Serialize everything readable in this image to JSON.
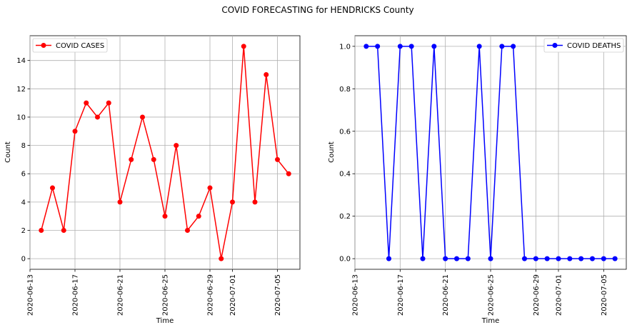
{
  "figure": {
    "suptitle": "COVID FORECASTING for HENDRICKS County"
  },
  "chart_data": [
    {
      "type": "line",
      "title": "",
      "xlabel": "Time",
      "ylabel": "Count",
      "grid": true,
      "legend": "top-left",
      "color": "#ff0000",
      "x": [
        "2020-06-14",
        "2020-06-15",
        "2020-06-16",
        "2020-06-17",
        "2020-06-18",
        "2020-06-19",
        "2020-06-20",
        "2020-06-21",
        "2020-06-22",
        "2020-06-23",
        "2020-06-24",
        "2020-06-25",
        "2020-06-26",
        "2020-06-27",
        "2020-06-28",
        "2020-06-29",
        "2020-06-30",
        "2020-07-01",
        "2020-07-02",
        "2020-07-03",
        "2020-07-04",
        "2020-07-05",
        "2020-07-06"
      ],
      "series": [
        {
          "name": "COVID CASES",
          "values": [
            2,
            5,
            2,
            9,
            11,
            10,
            11,
            4,
            7,
            10,
            7,
            3,
            8,
            2,
            3,
            5,
            0,
            4,
            15,
            4,
            13,
            7,
            6
          ]
        }
      ],
      "xlim": [
        "2020-06-13",
        "2020-07-07"
      ],
      "ylim": [
        -0.75,
        15.75
      ],
      "xticks": [
        "2020-06-13",
        "2020-06-17",
        "2020-06-21",
        "2020-06-25",
        "2020-06-29",
        "2020-07-01",
        "2020-07-05"
      ],
      "yticks": [
        0,
        2,
        4,
        6,
        8,
        10,
        12,
        14
      ],
      "ytick_labels": [
        "0",
        "2",
        "4",
        "6",
        "8",
        "10",
        "12",
        "14"
      ]
    },
    {
      "type": "line",
      "title": "",
      "xlabel": "Time",
      "ylabel": "Count",
      "grid": true,
      "legend": "top-right",
      "color": "#0000ff",
      "x": [
        "2020-06-14",
        "2020-06-15",
        "2020-06-16",
        "2020-06-17",
        "2020-06-18",
        "2020-06-19",
        "2020-06-20",
        "2020-06-21",
        "2020-06-22",
        "2020-06-23",
        "2020-06-24",
        "2020-06-25",
        "2020-06-26",
        "2020-06-27",
        "2020-06-28",
        "2020-06-29",
        "2020-06-30",
        "2020-07-01",
        "2020-07-02",
        "2020-07-03",
        "2020-07-04",
        "2020-07-05",
        "2020-07-06"
      ],
      "series": [
        {
          "name": "COVID DEATHS",
          "values": [
            1,
            1,
            0,
            1,
            1,
            0,
            1,
            0,
            0,
            0,
            1,
            0,
            1,
            1,
            0,
            0,
            0,
            0,
            0,
            0,
            0,
            0,
            0
          ]
        }
      ],
      "xlim": [
        "2020-06-13",
        "2020-07-07"
      ],
      "ylim": [
        -0.05,
        1.05
      ],
      "xticks": [
        "2020-06-13",
        "2020-06-17",
        "2020-06-21",
        "2020-06-25",
        "2020-06-29",
        "2020-07-01",
        "2020-07-05"
      ],
      "yticks": [
        0,
        0.2,
        0.4,
        0.6,
        0.8,
        1.0
      ],
      "ytick_labels": [
        "0.0",
        "0.2",
        "0.4",
        "0.6",
        "0.8",
        "1.0"
      ]
    }
  ]
}
